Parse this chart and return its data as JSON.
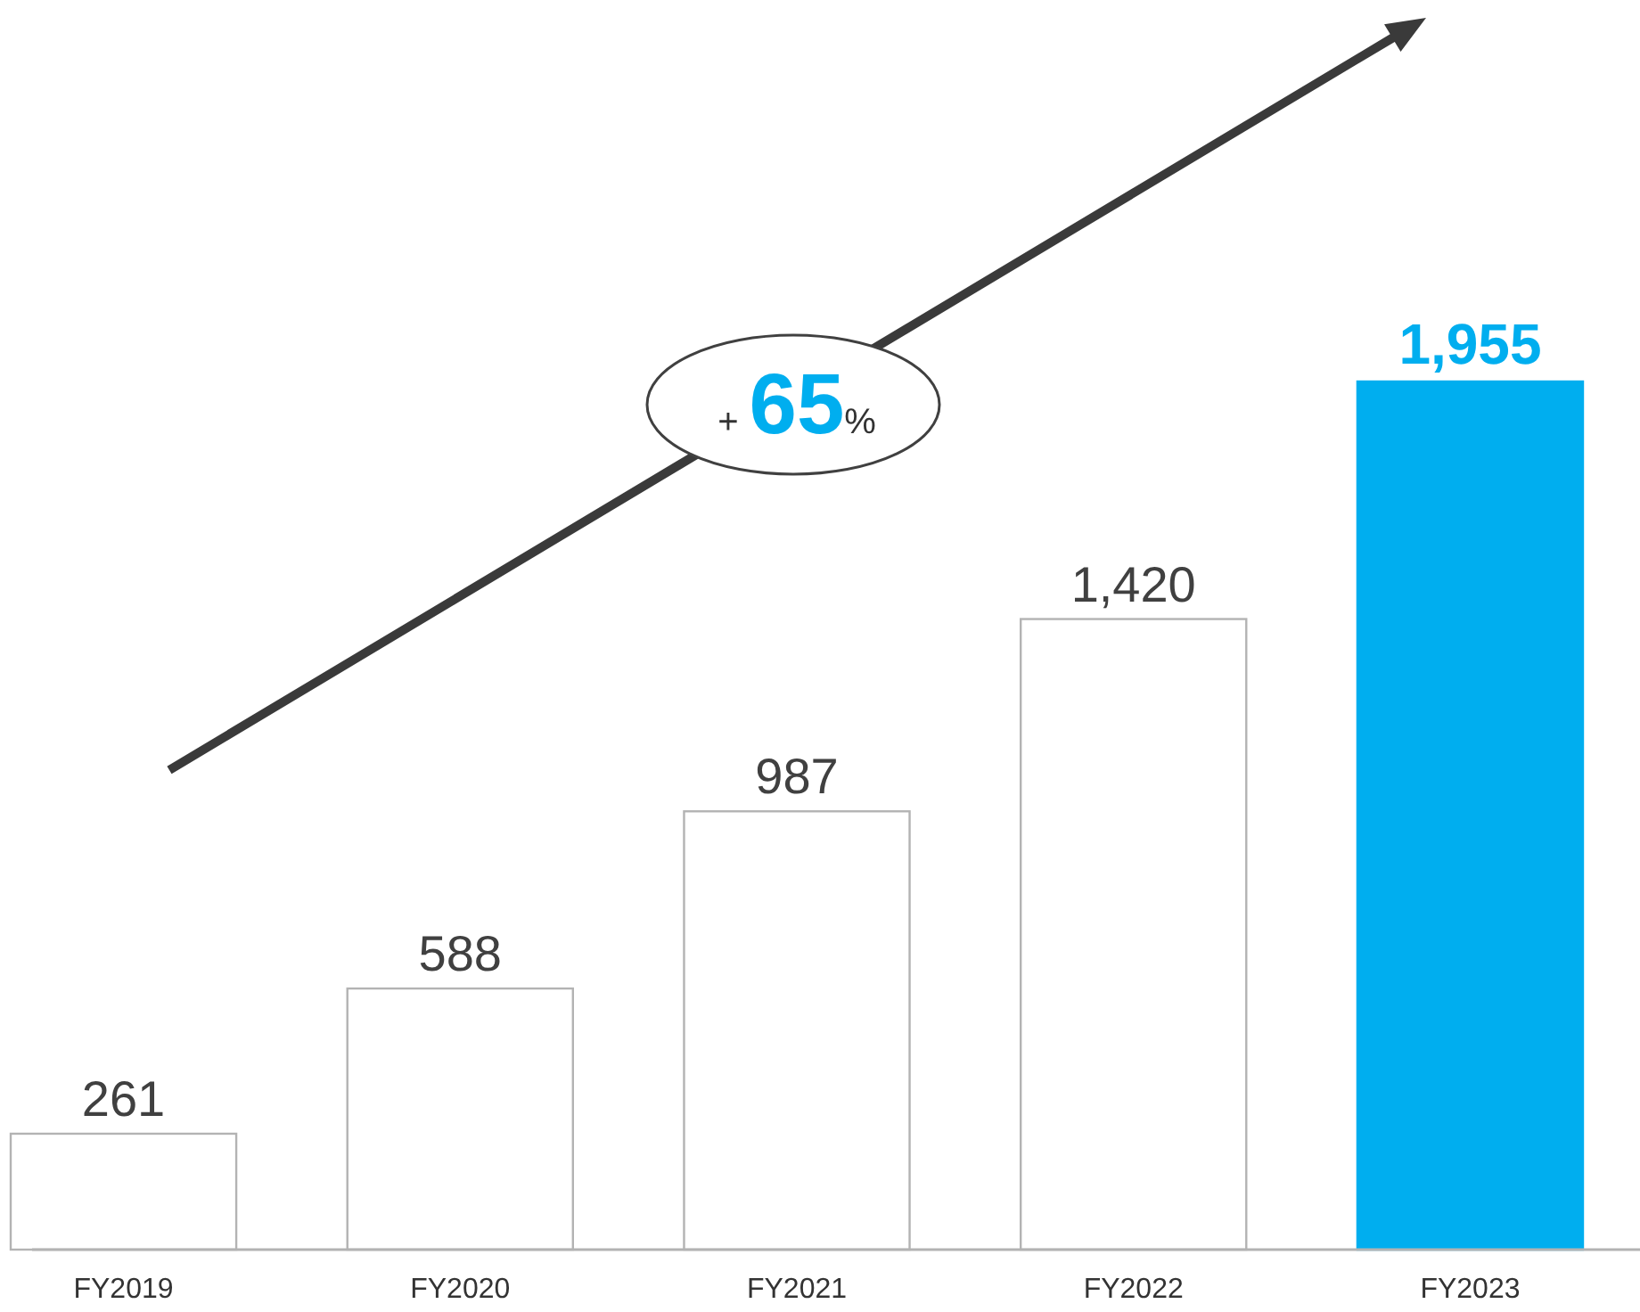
{
  "chart_data": {
    "type": "bar",
    "categories": [
      "FY2019",
      "FY2020",
      "FY2021",
      "FY2022",
      "FY2023"
    ],
    "values": [
      261,
      588,
      987,
      1420,
      1955
    ],
    "value_labels": [
      "261",
      "588",
      "987",
      "1,420",
      "1,955"
    ],
    "colors": [
      "#ffffff",
      "#ffffff",
      "#ffffff",
      "#ffffff",
      "#00aeef"
    ],
    "annotations": [
      "+65%"
    ]
  }
}
